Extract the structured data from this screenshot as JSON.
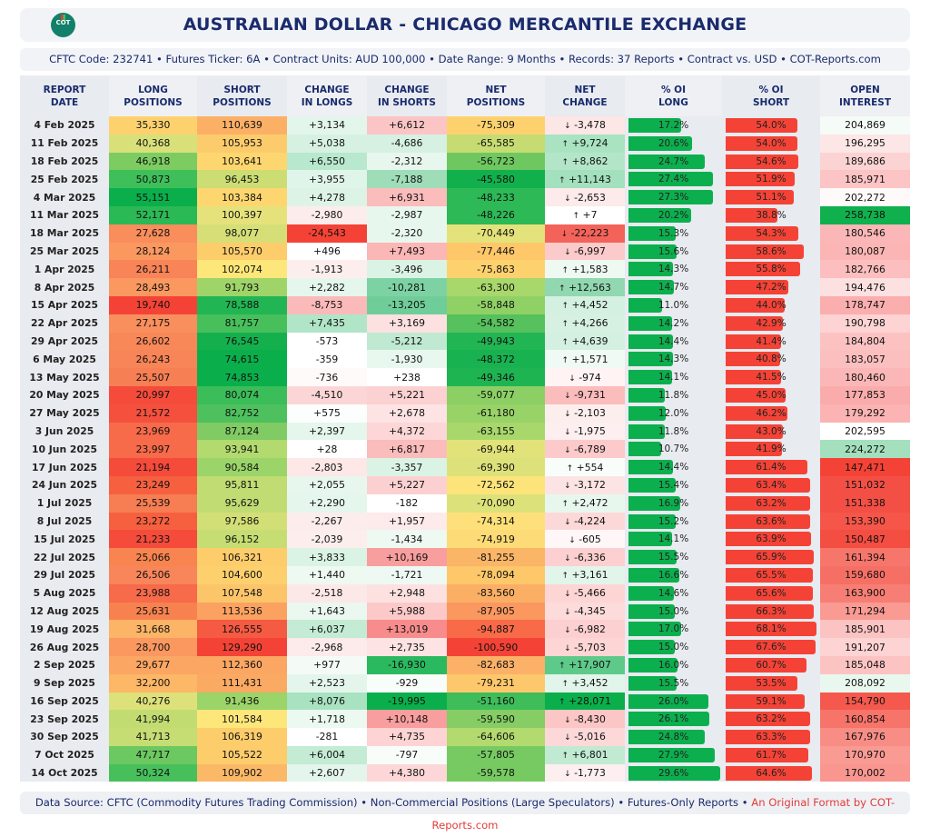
{
  "header": {
    "logo_text": "COT",
    "logo_subtext": "reports",
    "title": "AUSTRALIAN DOLLAR - CHICAGO MERCANTILE EXCHANGE",
    "subtitle": "CFTC Code: 232741 • Futures Ticker: 6A • Contract Units: AUD 100,000 • Date Range: 9 Months • Records: 37 Reports • Contract vs. USD • COT-Reports.com"
  },
  "columns": [
    {
      "line1": "REPORT",
      "line2": "DATE"
    },
    {
      "line1": "LONG",
      "line2": "POSITIONS"
    },
    {
      "line1": "SHORT",
      "line2": "POSITIONS"
    },
    {
      "line1": "CHANGE",
      "line2": "IN LONGS"
    },
    {
      "line1": "CHANGE",
      "line2": "IN SHORTS"
    },
    {
      "line1": "NET",
      "line2": "POSITIONS"
    },
    {
      "line1": "NET",
      "line2": "CHANGE"
    },
    {
      "line1": "% OI",
      "line2": "LONG"
    },
    {
      "line1": "% OI",
      "line2": "SHORT"
    },
    {
      "line1": "OPEN",
      "line2": "INTEREST"
    }
  ],
  "colors": {
    "bar_long": "#0caf4e",
    "bar_short": "#f44336",
    "title": "#1a2b6d",
    "footer_highlight": "#e23b3b"
  },
  "rows": [
    {
      "date": "4 Feb 2025",
      "long": "35,330",
      "short": "110,639",
      "chg_long": "+3,134",
      "chg_short": "+6,612",
      "net": "-75,309",
      "net_chg": "-3,478",
      "dir": "down",
      "oi_long": 17.2,
      "oi_short": 54.0,
      "oi": "204,869",
      "c": [
        "#fdd26e",
        "#fbb066",
        "#e3f6eb",
        "#fcc5c5",
        "#fdd26e",
        "#fde6e6",
        "#f5fbf7"
      ]
    },
    {
      "date": "11 Feb 2025",
      "long": "40,368",
      "short": "105,953",
      "chg_long": "+5,038",
      "chg_short": "-4,686",
      "net": "-65,585",
      "net_chg": "+9,724",
      "dir": "up",
      "oi_long": 20.6,
      "oi_short": 54.0,
      "oi": "196,295",
      "c": [
        "#d9e07a",
        "#fccc6c",
        "#d6f1e1",
        "#d6f1e1",
        "#c6dc72",
        "#a9e3c2",
        "#fde6e6"
      ]
    },
    {
      "date": "18 Feb 2025",
      "long": "46,918",
      "short": "103,641",
      "chg_long": "+6,550",
      "chg_short": "-2,312",
      "net": "-56,723",
      "net_chg": "+8,862",
      "dir": "up",
      "oi_long": 24.7,
      "oi_short": 54.6,
      "oi": "189,686",
      "c": [
        "#7ccc62",
        "#fdd66f",
        "#b8e8cd",
        "#e8f7ee",
        "#6fc85f",
        "#b3e6c9",
        "#fcd3d3"
      ]
    },
    {
      "date": "25 Feb 2025",
      "long": "50,873",
      "short": "96,453",
      "chg_long": "+3,955",
      "chg_short": "-7,188",
      "net": "-45,580",
      "net_chg": "+11,143",
      "dir": "up",
      "oi_long": 27.4,
      "oi_short": 51.9,
      "oi": "185,971",
      "c": [
        "#3fbf5a",
        "#cbdd73",
        "#e0f5e9",
        "#9fdcb8",
        "#12b04d",
        "#a3e0bd",
        "#fcc4c4"
      ]
    },
    {
      "date": "4 Mar 2025",
      "long": "55,151",
      "short": "103,384",
      "chg_long": "+4,278",
      "chg_short": "+6,931",
      "net": "-48,233",
      "net_chg": "-2,653",
      "dir": "down",
      "oi_long": 27.3,
      "oi_short": 51.1,
      "oi": "202,272",
      "c": [
        "#0aaf4b",
        "#fdd66f",
        "#dcf3e6",
        "#fbbcbc",
        "#2db956",
        "#fdeaea",
        "#fffafa"
      ]
    },
    {
      "date": "11 Mar 2025",
      "long": "52,171",
      "short": "100,397",
      "chg_long": "-2,980",
      "chg_short": "-2,987",
      "net": "-48,226",
      "net_chg": "+7",
      "dir": "up",
      "oi_long": 20.2,
      "oi_short": 38.8,
      "oi": "258,738",
      "c": [
        "#2bb955",
        "#e5e27b",
        "#fdecec",
        "#e8f7ee",
        "#2db956",
        "#ffffff",
        "#0fb04d"
      ]
    },
    {
      "date": "18 Mar 2025",
      "long": "27,628",
      "short": "98,077",
      "chg_long": "-24,543",
      "chg_short": "-2,320",
      "net": "-70,449",
      "net_chg": "-22,223",
      "dir": "down",
      "oi_long": 15.3,
      "oi_short": 54.3,
      "oi": "180,546",
      "c": [
        "#f98d5c",
        "#d6df77",
        "#f44336",
        "#e8f7ee",
        "#e4e27a",
        "#f4635a",
        "#fbb7b7"
      ]
    },
    {
      "date": "25 Mar 2025",
      "long": "28,124",
      "short": "105,570",
      "chg_long": "+496",
      "chg_short": "+7,493",
      "net": "-77,446",
      "net_chg": "-6,997",
      "dir": "down",
      "oi_long": 15.6,
      "oi_short": 58.6,
      "oi": "180,087",
      "c": [
        "#fa9860",
        "#fdcc6b",
        "#ffffff",
        "#fbb6b6",
        "#fdc76a",
        "#fbcaca",
        "#fbb5b5"
      ]
    },
    {
      "date": "1 Apr 2025",
      "long": "26,211",
      "short": "102,074",
      "chg_long": "-1,913",
      "chg_short": "-3,496",
      "net": "-75,863",
      "net_chg": "+1,583",
      "dir": "up",
      "oi_long": 14.3,
      "oi_short": 55.8,
      "oi": "182,766",
      "c": [
        "#f88457",
        "#fde77a",
        "#fdeeee",
        "#dbf3e5",
        "#fdd26e",
        "#eef9f2",
        "#fcbebe"
      ]
    },
    {
      "date": "8 Apr 2025",
      "long": "28,493",
      "short": "91,793",
      "chg_long": "+2,282",
      "chg_short": "-10,281",
      "net": "-63,300",
      "net_chg": "+12,563",
      "dir": "up",
      "oi_long": 14.7,
      "oi_short": 47.2,
      "oi": "194,476",
      "c": [
        "#fa9860",
        "#9fd469",
        "#e5f6ec",
        "#7dd2a3",
        "#a8d76b",
        "#91d8b1",
        "#fde0e0"
      ]
    },
    {
      "date": "15 Apr 2025",
      "long": "19,740",
      "short": "78,588",
      "chg_long": "-8,753",
      "chg_short": "-13,205",
      "net": "-58,848",
      "net_chg": "+4,452",
      "dir": "up",
      "oi_long": 11.0,
      "oi_short": 44.0,
      "oi": "178,747",
      "c": [
        "#f44336",
        "#22b553",
        "#fbbaba",
        "#6fcd99",
        "#90d166",
        "#d3f0e0",
        "#faaeae"
      ]
    },
    {
      "date": "22 Apr 2025",
      "long": "27,175",
      "short": "81,757",
      "chg_long": "+7,435",
      "chg_short": "+3,169",
      "net": "-54,582",
      "net_chg": "+4,266",
      "dir": "up",
      "oi_long": 14.2,
      "oi_short": 42.9,
      "oi": "190,798",
      "c": [
        "#f98f5d",
        "#47c05c",
        "#b0e5c8",
        "#fde0e0",
        "#56c15d",
        "#d6f1e1",
        "#fdd3d3"
      ]
    },
    {
      "date": "29 Apr 2025",
      "long": "26,602",
      "short": "76,545",
      "chg_long": "-573",
      "chg_short": "-5,212",
      "net": "-49,943",
      "net_chg": "+4,639",
      "dir": "up",
      "oi_long": 14.4,
      "oi_short": 41.4,
      "oi": "184,804",
      "c": [
        "#f88858",
        "#14b04e",
        "#ffffff",
        "#bfe9d1",
        "#22b553",
        "#d3f0e0",
        "#fcc2c2"
      ]
    },
    {
      "date": "6 May 2025",
      "long": "26,243",
      "short": "74,615",
      "chg_long": "-359",
      "chg_short": "-1,930",
      "net": "-48,372",
      "net_chg": "+1,571",
      "dir": "up",
      "oi_long": 14.3,
      "oi_short": 40.8,
      "oi": "183,057",
      "c": [
        "#f88557",
        "#0aaf4b",
        "#ffffff",
        "#e9f8ef",
        "#18b250",
        "#f0faf4",
        "#fcbfbf"
      ]
    },
    {
      "date": "13 May 2025",
      "long": "25,507",
      "short": "74,853",
      "chg_long": "-736",
      "chg_short": "+238",
      "net": "-49,346",
      "net_chg": "-974",
      "dir": "down",
      "oi_long": 14.1,
      "oi_short": 41.5,
      "oi": "180,460",
      "c": [
        "#f77f54",
        "#0aaf4b",
        "#fffafa",
        "#ffffff",
        "#1fb452",
        "#fff3f3",
        "#fbb7b7"
      ]
    },
    {
      "date": "20 May 2025",
      "long": "20,997",
      "short": "80,074",
      "chg_long": "-4,510",
      "chg_short": "+5,221",
      "net": "-59,077",
      "net_chg": "-9,731",
      "dir": "down",
      "oi_long": 11.8,
      "oi_short": 45.0,
      "oi": "177,853",
      "c": [
        "#f54b3b",
        "#3bbd59",
        "#fcd6d6",
        "#fcd1d1",
        "#8ccf65",
        "#fbbcbc",
        "#faacac"
      ]
    },
    {
      "date": "27 May 2025",
      "long": "21,572",
      "short": "82,752",
      "chg_long": "+575",
      "chg_short": "+2,678",
      "net": "-61,180",
      "net_chg": "-2,103",
      "dir": "down",
      "oi_long": 12.0,
      "oi_short": 46.2,
      "oi": "179,292",
      "c": [
        "#f5503d",
        "#4ec05d",
        "#fbfefc",
        "#fde3e3",
        "#98d367",
        "#fdeeee",
        "#fbb3b3"
      ]
    },
    {
      "date": "3 Jun 2025",
      "long": "23,969",
      "short": "87,124",
      "chg_long": "+2,397",
      "chg_short": "+4,372",
      "net": "-63,155",
      "net_chg": "-1,975",
      "dir": "down",
      "oi_long": 11.8,
      "oi_short": 43.0,
      "oi": "202,595",
      "c": [
        "#f76a4a",
        "#80cb63",
        "#e5f6ec",
        "#fdd7d7",
        "#a8d76b",
        "#fdefef",
        "#ffffff"
      ]
    },
    {
      "date": "10 Jun 2025",
      "long": "23,997",
      "short": "93,941",
      "chg_long": "+28",
      "chg_short": "+6,817",
      "net": "-69,944",
      "net_chg": "-6,789",
      "dir": "down",
      "oi_long": 10.7,
      "oi_short": 41.9,
      "oi": "224,272",
      "c": [
        "#f76a4a",
        "#b2da6e",
        "#ffffff",
        "#fbbcbc",
        "#e2e27a",
        "#fccaca",
        "#a4e0be"
      ]
    },
    {
      "date": "17 Jun 2025",
      "long": "21,194",
      "short": "90,584",
      "chg_long": "-2,803",
      "chg_short": "-3,357",
      "net": "-69,390",
      "net_chg": "+554",
      "dir": "up",
      "oi_long": 14.4,
      "oi_short": 61.4,
      "oi": "147,471",
      "c": [
        "#f54b3b",
        "#9bd468",
        "#fde7e7",
        "#dbf3e5",
        "#dde17a",
        "#f8fdfa",
        "#f44336"
      ]
    },
    {
      "date": "24 Jun 2025",
      "long": "23,249",
      "short": "95,811",
      "chg_long": "+2,055",
      "chg_short": "+5,227",
      "net": "-72,562",
      "net_chg": "-3,172",
      "dir": "down",
      "oi_long": 15.4,
      "oi_short": 63.4,
      "oi": "151,032",
      "c": [
        "#f6603f",
        "#c0dc72",
        "#e8f7ee",
        "#fcd0d0",
        "#fde47a",
        "#fde4e4",
        "#f44f44"
      ]
    },
    {
      "date": "1 Jul 2025",
      "long": "25,539",
      "short": "95,629",
      "chg_long": "+2,290",
      "chg_short": "-182",
      "net": "-70,090",
      "net_chg": "+2,472",
      "dir": "up",
      "oi_long": 16.9,
      "oi_short": 63.2,
      "oi": "151,338",
      "c": [
        "#f77d52",
        "#c0dc72",
        "#e5f6ec",
        "#ffffff",
        "#dde17a",
        "#e8f7ee",
        "#f44f44"
      ]
    },
    {
      "date": "8 Jul 2025",
      "long": "23,272",
      "short": "97,586",
      "chg_long": "-2,267",
      "chg_short": "+1,957",
      "net": "-74,314",
      "net_chg": "-4,224",
      "dir": "down",
      "oi_long": 15.2,
      "oi_short": 63.6,
      "oi": "153,390",
      "c": [
        "#f6603f",
        "#d2df76",
        "#fdecec",
        "#fdeaea",
        "#fde07a",
        "#fdd8d8",
        "#f55649"
      ]
    },
    {
      "date": "15 Jul 2025",
      "long": "21,233",
      "short": "96,152",
      "chg_long": "-2,039",
      "chg_short": "-1,434",
      "net": "-74,919",
      "net_chg": "-605",
      "dir": "down",
      "oi_long": 14.1,
      "oi_short": 63.9,
      "oi": "150,487",
      "c": [
        "#f54b3b",
        "#c6dd73",
        "#fdeeee",
        "#eef9f2",
        "#fddb76",
        "#fff7f7",
        "#f44d42"
      ]
    },
    {
      "date": "22 Jul 2025",
      "long": "25,066",
      "short": "106,321",
      "chg_long": "+3,833",
      "chg_short": "+10,169",
      "net": "-81,255",
      "net_chg": "-6,336",
      "dir": "down",
      "oi_long": 15.5,
      "oi_short": 65.9,
      "oi": "161,394",
      "c": [
        "#f8844f",
        "#fdcc6b",
        "#daf3e4",
        "#f99e9e",
        "#fbb567",
        "#fcd0d0",
        "#f7766c"
      ]
    },
    {
      "date": "29 Jul 2025",
      "long": "26,506",
      "short": "104,600",
      "chg_long": "+1,440",
      "chg_short": "-1,721",
      "net": "-78,094",
      "net_chg": "+3,161",
      "dir": "up",
      "oi_long": 16.6,
      "oi_short": 65.5,
      "oi": "159,680",
      "c": [
        "#f8865a",
        "#fdd06d",
        "#eef9f2",
        "#edf9f2",
        "#fdc76a",
        "#e2f5ea",
        "#f66f64"
      ]
    },
    {
      "date": "5 Aug 2025",
      "long": "23,988",
      "short": "107,548",
      "chg_long": "-2,518",
      "chg_short": "+2,948",
      "net": "-83,560",
      "net_chg": "-5,466",
      "dir": "down",
      "oi_long": 14.6,
      "oi_short": 65.6,
      "oi": "163,900",
      "c": [
        "#f76a4a",
        "#fcc56a",
        "#fde8e8",
        "#fde1e1",
        "#fbaf65",
        "#fdd5d5",
        "#f77e74"
      ]
    },
    {
      "date": "12 Aug 2025",
      "long": "25,631",
      "short": "113,536",
      "chg_long": "+1,643",
      "chg_short": "+5,988",
      "net": "-87,905",
      "net_chg": "-4,345",
      "dir": "down",
      "oi_long": 15.0,
      "oi_short": 66.3,
      "oi": "171,294",
      "c": [
        "#f7824f",
        "#fba261",
        "#eaf8f0",
        "#fcc8c8",
        "#fa9860",
        "#fddbdb",
        "#f99a93"
      ]
    },
    {
      "date": "19 Aug 2025",
      "long": "31,668",
      "short": "126,555",
      "chg_long": "+6,037",
      "chg_short": "+13,019",
      "net": "-94,887",
      "net_chg": "-6,982",
      "dir": "down",
      "oi_long": 17.0,
      "oi_short": 68.1,
      "oi": "185,901",
      "c": [
        "#fcb466",
        "#f55a42",
        "#c4ebd4",
        "#f88c8c",
        "#f86a48",
        "#fcd0d0",
        "#fcc3c3"
      ]
    },
    {
      "date": "26 Aug 2025",
      "long": "28,700",
      "short": "129,290",
      "chg_long": "-2,968",
      "chg_short": "+2,735",
      "net": "-100,590",
      "net_chg": "-5,703",
      "dir": "down",
      "oi_long": 15.0,
      "oi_short": 67.6,
      "oi": "191,207",
      "c": [
        "#fa9860",
        "#f44336",
        "#fdeaea",
        "#fde3e3",
        "#f44336",
        "#fdd5d5",
        "#fdd3d3"
      ]
    },
    {
      "date": "2 Sep 2025",
      "long": "29,677",
      "short": "112,360",
      "chg_long": "+977",
      "chg_short": "-16,930",
      "net": "-82,683",
      "net_chg": "+17,907",
      "dir": "up",
      "oi_long": 16.0,
      "oi_short": 60.7,
      "oi": "185,048",
      "c": [
        "#fba662",
        "#fba662",
        "#f4fbf7",
        "#2bb960",
        "#fbb167",
        "#5dca8a",
        "#fcc3c3"
      ]
    },
    {
      "date": "9 Sep 2025",
      "long": "32,200",
      "short": "111,431",
      "chg_long": "+2,523",
      "chg_short": "-929",
      "net": "-79,231",
      "net_chg": "+3,452",
      "dir": "up",
      "oi_long": 15.5,
      "oi_short": 53.5,
      "oi": "208,092",
      "c": [
        "#fcb767",
        "#fbaa63",
        "#e4f6eb",
        "#f8fdfa",
        "#fdc86b",
        "#e2f5ea",
        "#e9f8ef"
      ]
    },
    {
      "date": "16 Sep 2025",
      "long": "40,276",
      "short": "91,436",
      "chg_long": "+8,076",
      "chg_short": "-19,995",
      "net": "-51,160",
      "net_chg": "+28,071",
      "dir": "up",
      "oi_long": 26.0,
      "oi_short": 59.1,
      "oi": "154,790",
      "c": [
        "#dde17a",
        "#9bd468",
        "#a8e2c1",
        "#0aaf4b",
        "#3ebd5a",
        "#0aaf4b",
        "#f5584d"
      ]
    },
    {
      "date": "23 Sep 2025",
      "long": "41,994",
      "short": "101,584",
      "chg_long": "+1,718",
      "chg_short": "+10,148",
      "net": "-59,590",
      "net_chg": "-8,430",
      "dir": "down",
      "oi_long": 26.1,
      "oi_short": 63.2,
      "oi": "160,854",
      "c": [
        "#c2dc72",
        "#fde77a",
        "#ecf9f1",
        "#f99e9e",
        "#85cd64",
        "#fcc6c6",
        "#f6746a"
      ]
    },
    {
      "date": "30 Sep 2025",
      "long": "41,713",
      "short": "106,319",
      "chg_long": "-281",
      "chg_short": "+4,735",
      "net": "-64,606",
      "net_chg": "-5,016",
      "dir": "down",
      "oi_long": 24.8,
      "oi_short": 63.3,
      "oi": "167,976",
      "c": [
        "#c6dd73",
        "#fdcc6b",
        "#ffffff",
        "#fdd3d3",
        "#b2da6e",
        "#fdd8d8",
        "#f88d85"
      ]
    },
    {
      "date": "7 Oct 2025",
      "long": "47,717",
      "short": "105,522",
      "chg_long": "+6,004",
      "chg_short": "-797",
      "net": "-57,805",
      "net_chg": "+6,801",
      "dir": "up",
      "oi_long": 27.9,
      "oi_short": 61.7,
      "oi": "170,970",
      "c": [
        "#6cc860",
        "#fdcc6b",
        "#c4ebd4",
        "#f8fdfa",
        "#77ca62",
        "#c1ead2",
        "#f99a93"
      ]
    },
    {
      "date": "14 Oct 2025",
      "long": "50,324",
      "short": "109,902",
      "chg_long": "+2,607",
      "chg_short": "+4,380",
      "net": "-59,578",
      "net_chg": "-1,773",
      "dir": "down",
      "oi_long": 29.6,
      "oi_short": 64.6,
      "oi": "170,002",
      "c": [
        "#47c05c",
        "#fbb867",
        "#e4f6eb",
        "#fdd7d7",
        "#77ca62",
        "#fdefef",
        "#f99690"
      ]
    }
  ],
  "footer": {
    "text": "Data Source: CFTC (Commodity Futures Trading Commission) • Non-Commercial Positions (Large Speculators) • Futures-Only Reports • ",
    "highlight": "An Original Format by COT-Reports.com"
  },
  "arrows": {
    "up": "↑",
    "down": "↓"
  }
}
